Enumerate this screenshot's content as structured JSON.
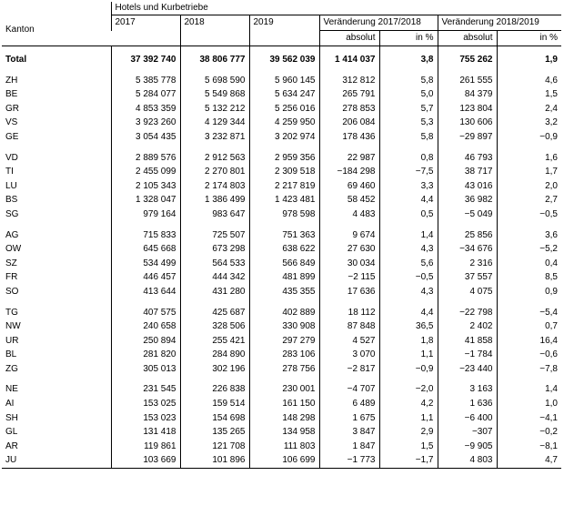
{
  "header": {
    "group_label": "Hotels und Kurbetriebe",
    "kanton_label": "Kanton",
    "years": [
      "2017",
      "2018",
      "2019"
    ],
    "change1_label": "Veränderung 2017/2018",
    "change2_label": "Veränderung 2018/2019",
    "absolut_label": "absolut",
    "pct_label": "in %"
  },
  "total": {
    "name": "Total",
    "v2017": "37 392 740",
    "v2018": "38 806 777",
    "v2019": "39 562 039",
    "abs1": "1 414 037",
    "pct1": "3,8",
    "abs2": "755 262",
    "pct2": "1,9"
  },
  "groups": [
    [
      {
        "name": "ZH",
        "v2017": "5 385 778",
        "v2018": "5 698 590",
        "v2019": "5 960 145",
        "abs1": "312 812",
        "pct1": "5,8",
        "abs2": "261 555",
        "pct2": "4,6"
      },
      {
        "name": "BE",
        "v2017": "5 284 077",
        "v2018": "5 549 868",
        "v2019": "5 634 247",
        "abs1": "265 791",
        "pct1": "5,0",
        "abs2": "84 379",
        "pct2": "1,5"
      },
      {
        "name": "GR",
        "v2017": "4 853 359",
        "v2018": "5 132 212",
        "v2019": "5 256 016",
        "abs1": "278 853",
        "pct1": "5,7",
        "abs2": "123 804",
        "pct2": "2,4"
      },
      {
        "name": "VS",
        "v2017": "3 923 260",
        "v2018": "4 129 344",
        "v2019": "4 259 950",
        "abs1": "206 084",
        "pct1": "5,3",
        "abs2": "130 606",
        "pct2": "3,2"
      },
      {
        "name": "GE",
        "v2017": "3 054 435",
        "v2018": "3 232 871",
        "v2019": "3 202 974",
        "abs1": "178 436",
        "pct1": "5,8",
        "abs2": "−29 897",
        "pct2": "−0,9"
      }
    ],
    [
      {
        "name": "VD",
        "v2017": "2 889 576",
        "v2018": "2 912 563",
        "v2019": "2 959 356",
        "abs1": "22 987",
        "pct1": "0,8",
        "abs2": "46 793",
        "pct2": "1,6"
      },
      {
        "name": "TI",
        "v2017": "2 455 099",
        "v2018": "2 270 801",
        "v2019": "2 309 518",
        "abs1": "−184 298",
        "pct1": "−7,5",
        "abs2": "38 717",
        "pct2": "1,7"
      },
      {
        "name": "LU",
        "v2017": "2 105 343",
        "v2018": "2 174 803",
        "v2019": "2 217 819",
        "abs1": "69 460",
        "pct1": "3,3",
        "abs2": "43 016",
        "pct2": "2,0"
      },
      {
        "name": "BS",
        "v2017": "1 328 047",
        "v2018": "1 386 499",
        "v2019": "1 423 481",
        "abs1": "58 452",
        "pct1": "4,4",
        "abs2": "36 982",
        "pct2": "2,7"
      },
      {
        "name": "SG",
        "v2017": "979 164",
        "v2018": "983 647",
        "v2019": "978 598",
        "abs1": "4 483",
        "pct1": "0,5",
        "abs2": "−5 049",
        "pct2": "−0,5"
      }
    ],
    [
      {
        "name": "AG",
        "v2017": "715 833",
        "v2018": "725 507",
        "v2019": "751 363",
        "abs1": "9 674",
        "pct1": "1,4",
        "abs2": "25 856",
        "pct2": "3,6"
      },
      {
        "name": "OW",
        "v2017": "645 668",
        "v2018": "673 298",
        "v2019": "638 622",
        "abs1": "27 630",
        "pct1": "4,3",
        "abs2": "−34 676",
        "pct2": "−5,2"
      },
      {
        "name": "SZ",
        "v2017": "534 499",
        "v2018": "564 533",
        "v2019": "566 849",
        "abs1": "30 034",
        "pct1": "5,6",
        "abs2": "2 316",
        "pct2": "0,4"
      },
      {
        "name": "FR",
        "v2017": "446 457",
        "v2018": "444 342",
        "v2019": "481 899",
        "abs1": "−2 115",
        "pct1": "−0,5",
        "abs2": "37 557",
        "pct2": "8,5"
      },
      {
        "name": "SO",
        "v2017": "413 644",
        "v2018": "431 280",
        "v2019": "435 355",
        "abs1": "17 636",
        "pct1": "4,3",
        "abs2": "4 075",
        "pct2": "0,9"
      }
    ],
    [
      {
        "name": "TG",
        "v2017": "407 575",
        "v2018": "425 687",
        "v2019": "402 889",
        "abs1": "18 112",
        "pct1": "4,4",
        "abs2": "−22 798",
        "pct2": "−5,4"
      },
      {
        "name": "NW",
        "v2017": "240 658",
        "v2018": "328 506",
        "v2019": "330 908",
        "abs1": "87 848",
        "pct1": "36,5",
        "abs2": "2 402",
        "pct2": "0,7"
      },
      {
        "name": "UR",
        "v2017": "250 894",
        "v2018": "255 421",
        "v2019": "297 279",
        "abs1": "4 527",
        "pct1": "1,8",
        "abs2": "41 858",
        "pct2": "16,4"
      },
      {
        "name": "BL",
        "v2017": "281 820",
        "v2018": "284 890",
        "v2019": "283 106",
        "abs1": "3 070",
        "pct1": "1,1",
        "abs2": "−1 784",
        "pct2": "−0,6"
      },
      {
        "name": "ZG",
        "v2017": "305 013",
        "v2018": "302 196",
        "v2019": "278 756",
        "abs1": "−2 817",
        "pct1": "−0,9",
        "abs2": "−23 440",
        "pct2": "−7,8"
      }
    ],
    [
      {
        "name": "NE",
        "v2017": "231 545",
        "v2018": "226 838",
        "v2019": "230 001",
        "abs1": "−4 707",
        "pct1": "−2,0",
        "abs2": "3 163",
        "pct2": "1,4"
      },
      {
        "name": "AI",
        "v2017": "153 025",
        "v2018": "159 514",
        "v2019": "161 150",
        "abs1": "6 489",
        "pct1": "4,2",
        "abs2": "1 636",
        "pct2": "1,0"
      },
      {
        "name": "SH",
        "v2017": "153 023",
        "v2018": "154 698",
        "v2019": "148 298",
        "abs1": "1 675",
        "pct1": "1,1",
        "abs2": "−6 400",
        "pct2": "−4,1"
      },
      {
        "name": "GL",
        "v2017": "131 418",
        "v2018": "135 265",
        "v2019": "134 958",
        "abs1": "3 847",
        "pct1": "2,9",
        "abs2": "−307",
        "pct2": "−0,2"
      },
      {
        "name": "AR",
        "v2017": "119 861",
        "v2018": "121 708",
        "v2019": "111 803",
        "abs1": "1 847",
        "pct1": "1,5",
        "abs2": "−9 905",
        "pct2": "−8,1"
      },
      {
        "name": "JU",
        "v2017": "103 669",
        "v2018": "101 896",
        "v2019": "106 699",
        "abs1": "−1 773",
        "pct1": "−1,7",
        "abs2": "4 803",
        "pct2": "4,7"
      }
    ]
  ]
}
